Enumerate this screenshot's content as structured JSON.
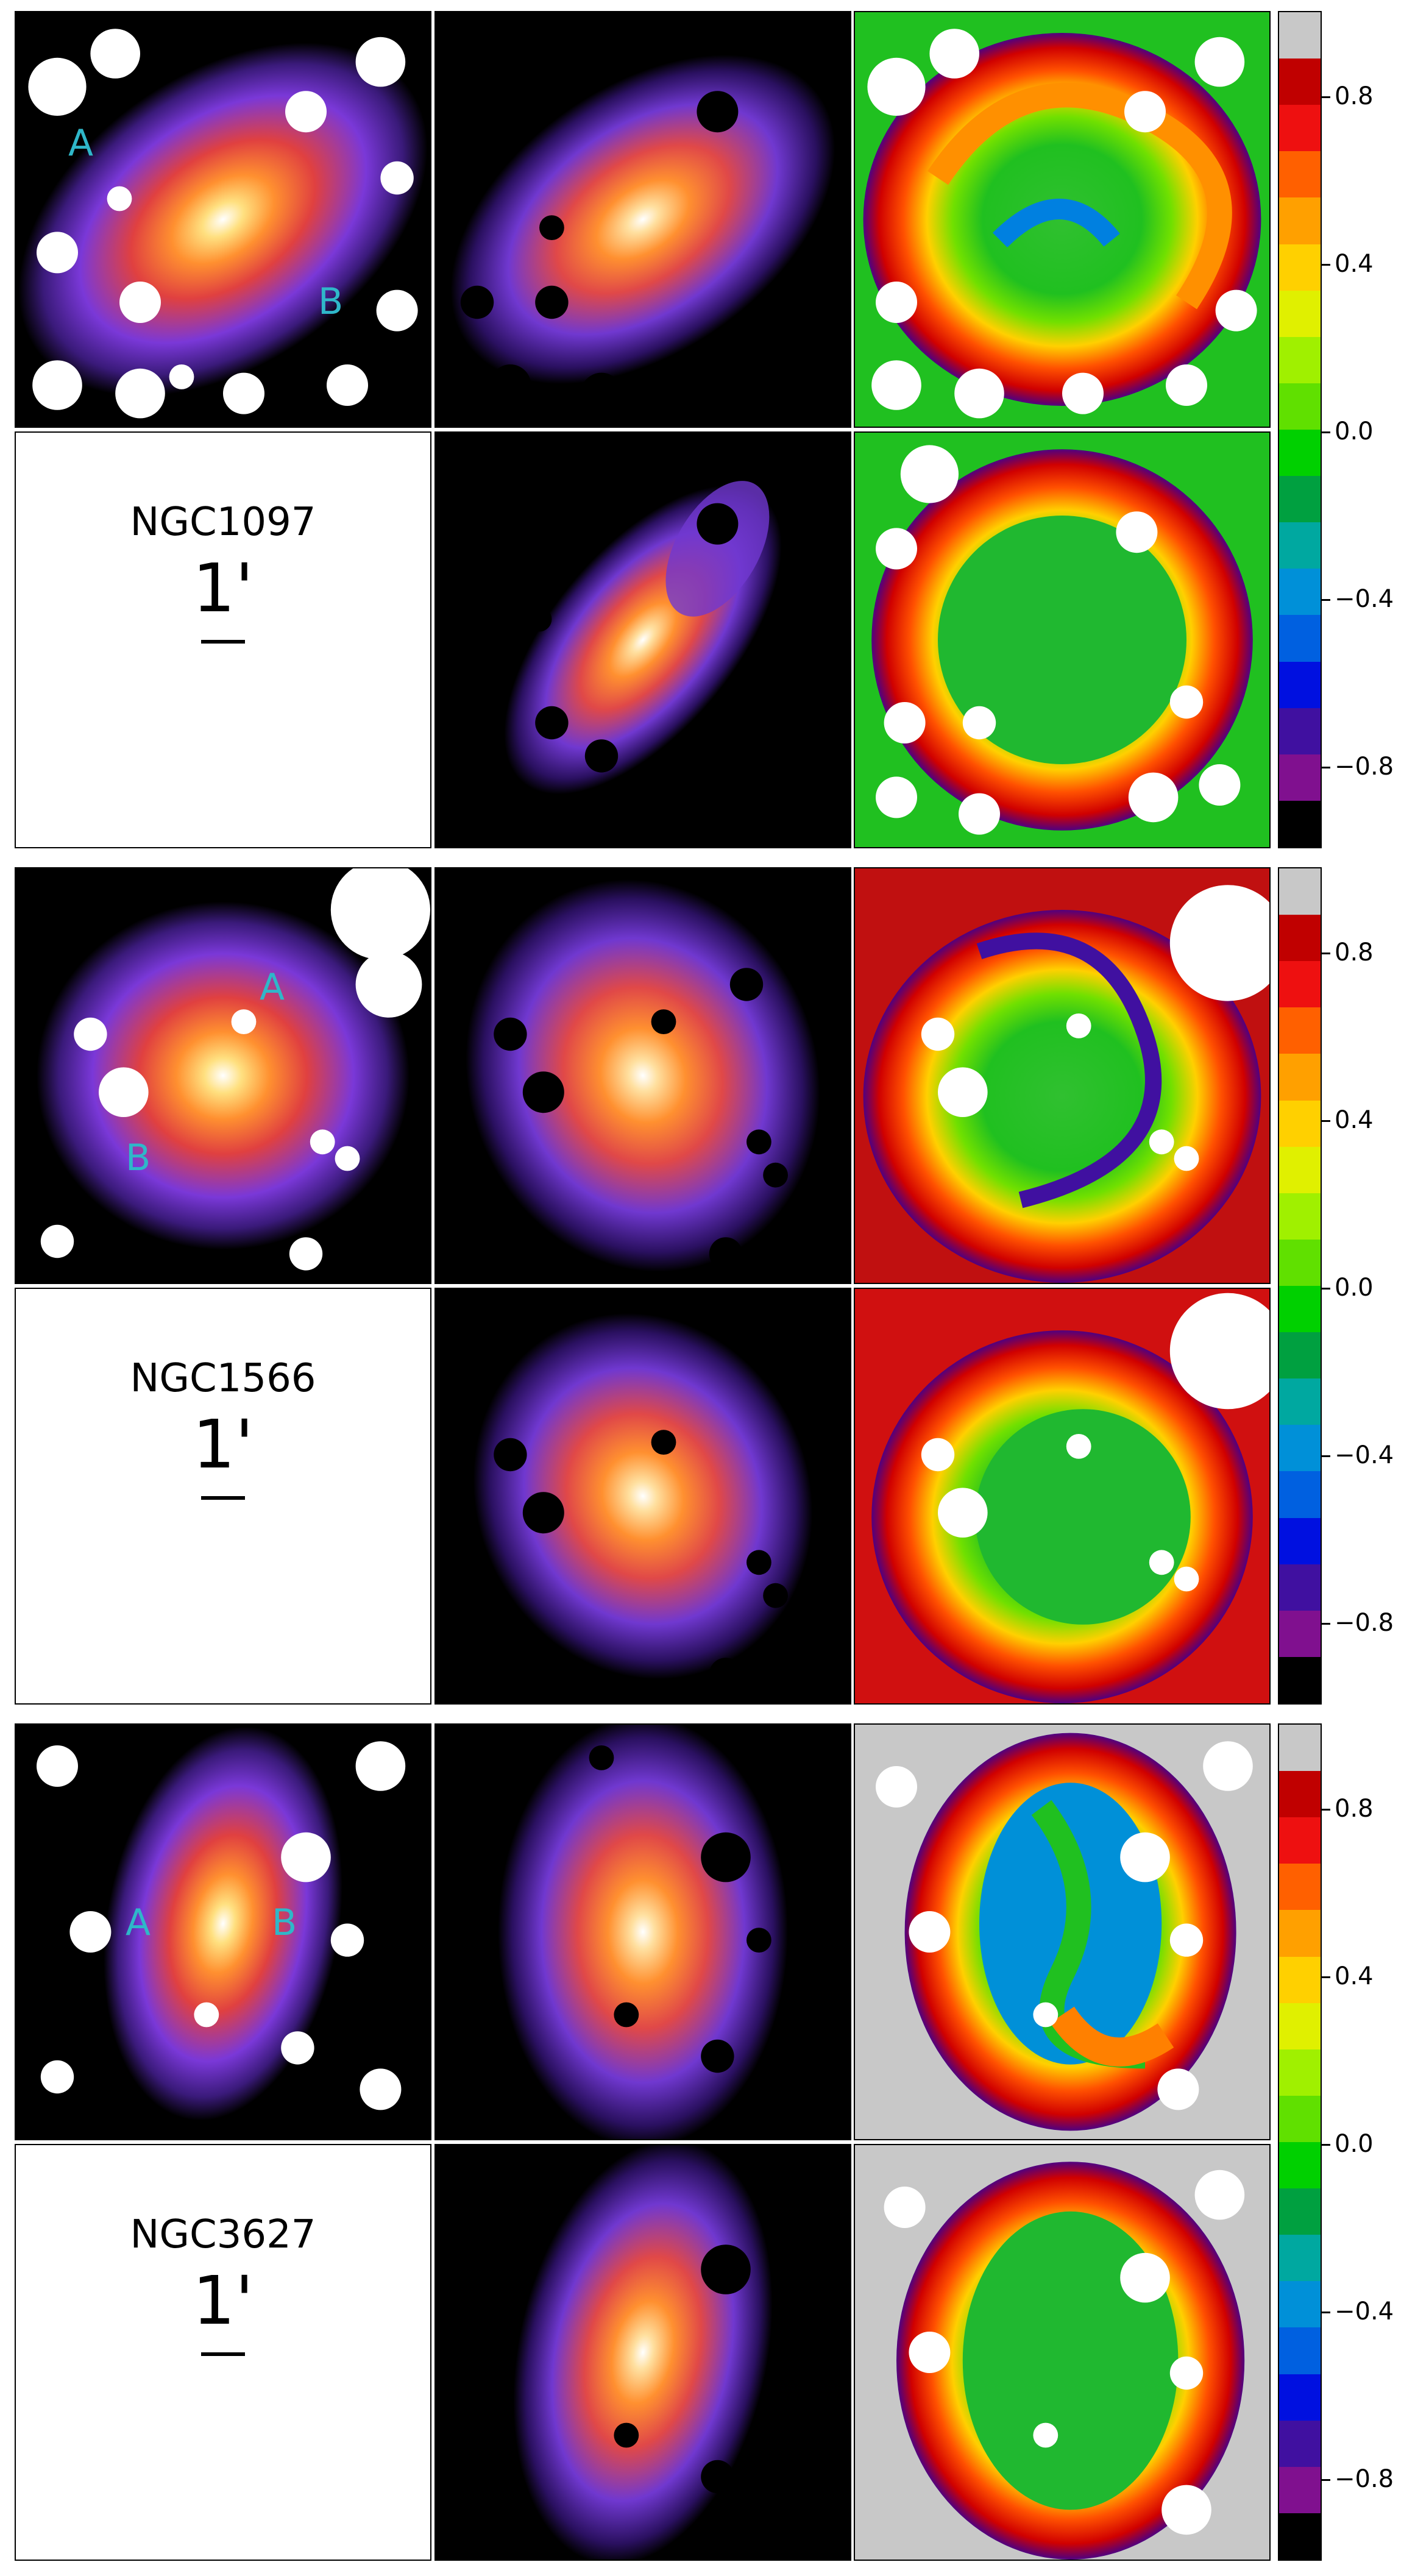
{
  "figure": {
    "colors": {
      "background": "#ffffff",
      "label_color": "#2fb7c9",
      "masked_color": "#ffffff"
    },
    "colorbar": {
      "ticks": [
        "0.8",
        "0.4",
        "0.0",
        "−0.4",
        "−0.8"
      ],
      "segments": [
        "#c8c8c8",
        "#c00000",
        "#ee1010",
        "#ff6000",
        "#ffa000",
        "#ffd000",
        "#e0f000",
        "#a0f000",
        "#60e000",
        "#00d000",
        "#00a040",
        "#00a8a0",
        "#0090d8",
        "#0060e0",
        "#0010e0",
        "#4010a0",
        "#80108f",
        "#000000"
      ]
    },
    "galaxies": [
      {
        "name": "NGC1097",
        "scale": "1'",
        "label_a": "A",
        "label_b": "B"
      },
      {
        "name": "NGC1566",
        "scale": "1'",
        "label_a": "A",
        "label_b": "B"
      },
      {
        "name": "NGC3627",
        "scale": "1'",
        "label_a": "A",
        "label_b": "B"
      }
    ]
  }
}
